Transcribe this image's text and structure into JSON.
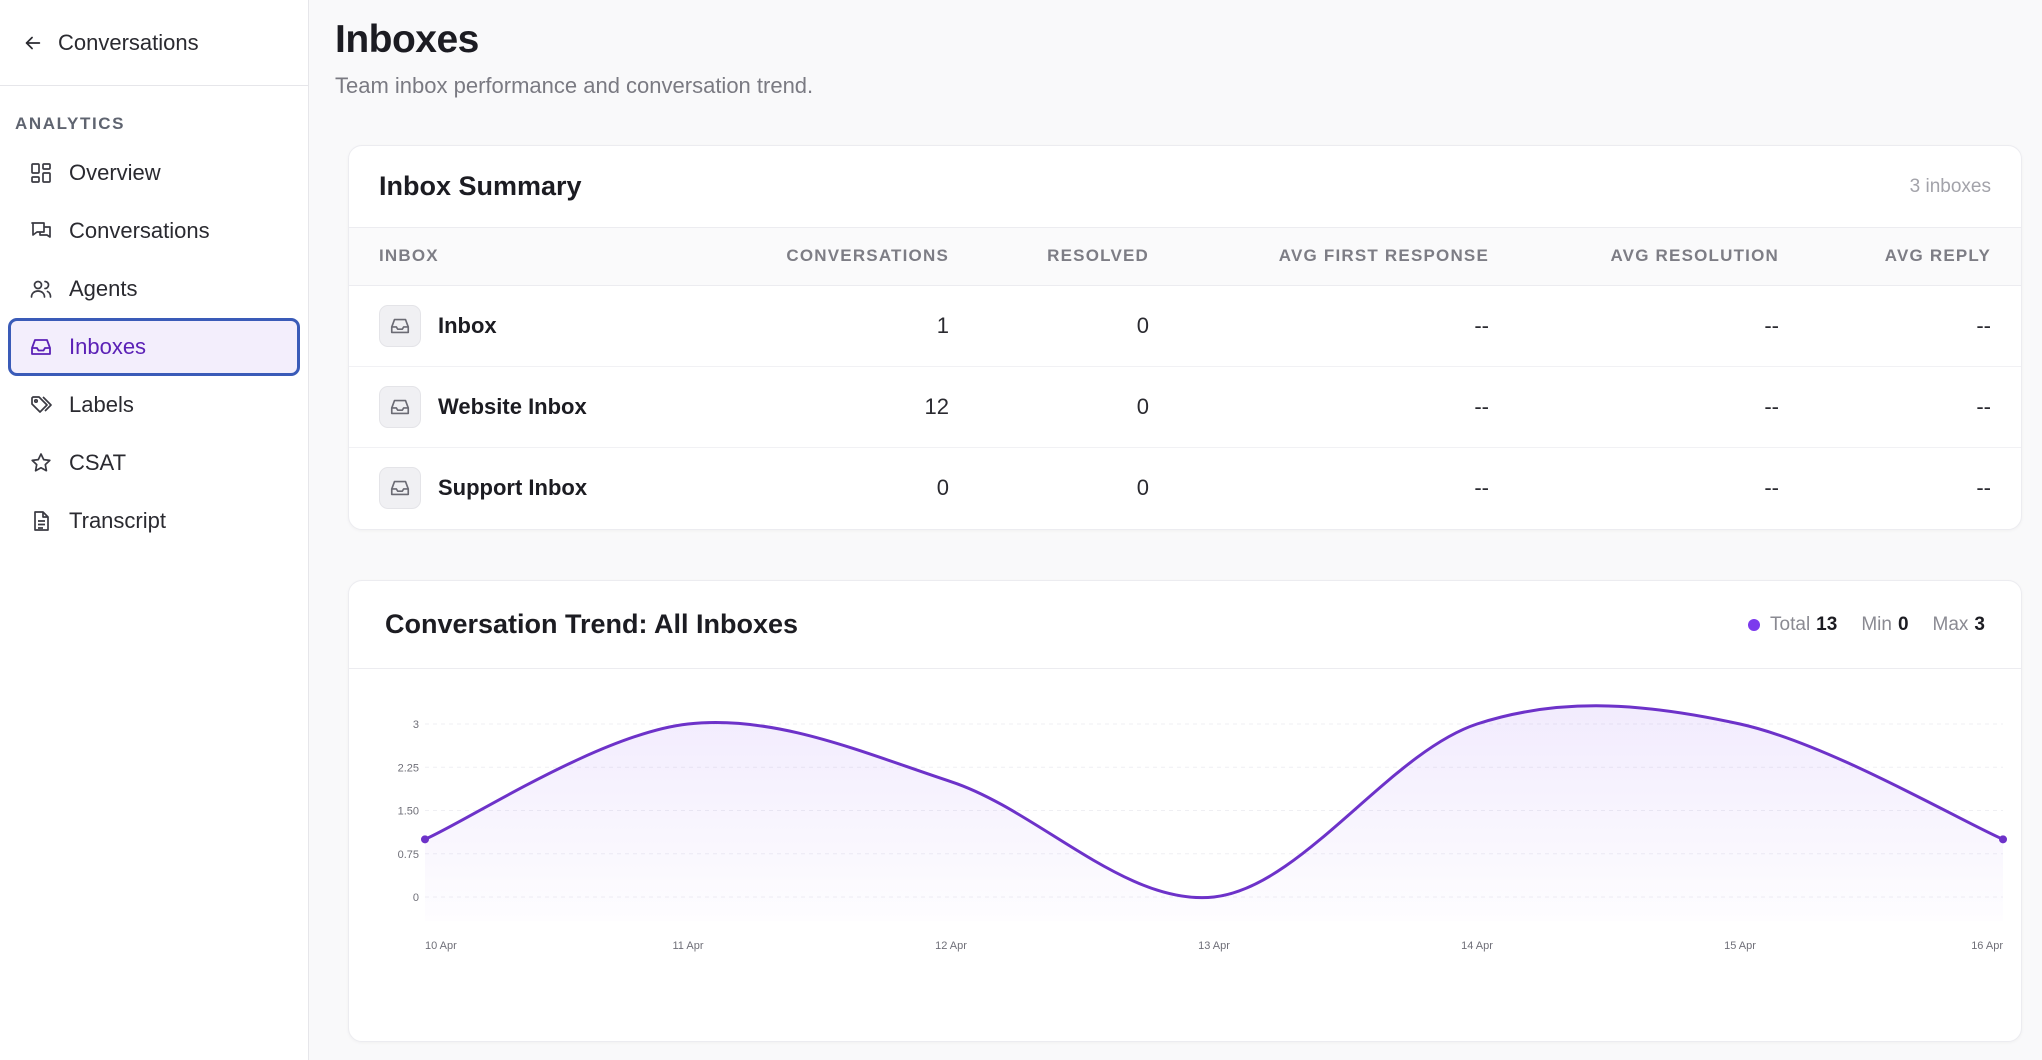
{
  "sidebar": {
    "back_label": "Conversations",
    "section_label": "ANALYTICS",
    "items": [
      {
        "label": "Overview",
        "icon": "grid-icon"
      },
      {
        "label": "Conversations",
        "icon": "chat-icon"
      },
      {
        "label": "Agents",
        "icon": "users-icon"
      },
      {
        "label": "Inboxes",
        "icon": "inbox-icon",
        "active": true
      },
      {
        "label": "Labels",
        "icon": "tag-icon"
      },
      {
        "label": "CSAT",
        "icon": "star-icon"
      },
      {
        "label": "Transcript",
        "icon": "document-icon"
      }
    ]
  },
  "header": {
    "title": "Inboxes",
    "subtitle": "Team inbox performance and conversation trend."
  },
  "summary": {
    "title": "Inbox Summary",
    "count_text": "3 inboxes",
    "columns": [
      "INBOX",
      "CONVERSATIONS",
      "RESOLVED",
      "AVG FIRST RESPONSE",
      "AVG RESOLUTION",
      "AVG REPLY"
    ],
    "rows": [
      {
        "name": "Inbox",
        "conversations": "1",
        "resolved": "0",
        "avg_first_response": "--",
        "avg_resolution": "--",
        "avg_reply": "--"
      },
      {
        "name": "Website Inbox",
        "conversations": "12",
        "resolved": "0",
        "avg_first_response": "--",
        "avg_resolution": "--",
        "avg_reply": "--"
      },
      {
        "name": "Support Inbox",
        "conversations": "0",
        "resolved": "0",
        "avg_first_response": "--",
        "avg_resolution": "--",
        "avg_reply": "--"
      }
    ]
  },
  "trend": {
    "title": "Conversation Trend: All Inboxes",
    "legend": {
      "total_label": "Total",
      "total_value": "13",
      "min_label": "Min",
      "min_value": "0",
      "max_label": "Max",
      "max_value": "3"
    }
  },
  "colors": {
    "accent": "#7c3aed",
    "line": "#6d32c9",
    "active_nav_bg": "#f3eefc",
    "active_nav_border": "#3a5bb8"
  },
  "chart_data": {
    "type": "area",
    "categories": [
      "10 Apr",
      "11 Apr",
      "12 Apr",
      "13 Apr",
      "14 Apr",
      "15 Apr",
      "16 Apr"
    ],
    "series": [
      {
        "values": [
          1,
          3,
          2,
          0,
          3,
          3,
          1
        ]
      }
    ],
    "y_ticks": [
      "0",
      "0.75",
      "1.50",
      "2.25",
      "3"
    ],
    "ylim": [
      0,
      3
    ],
    "grid": true
  }
}
